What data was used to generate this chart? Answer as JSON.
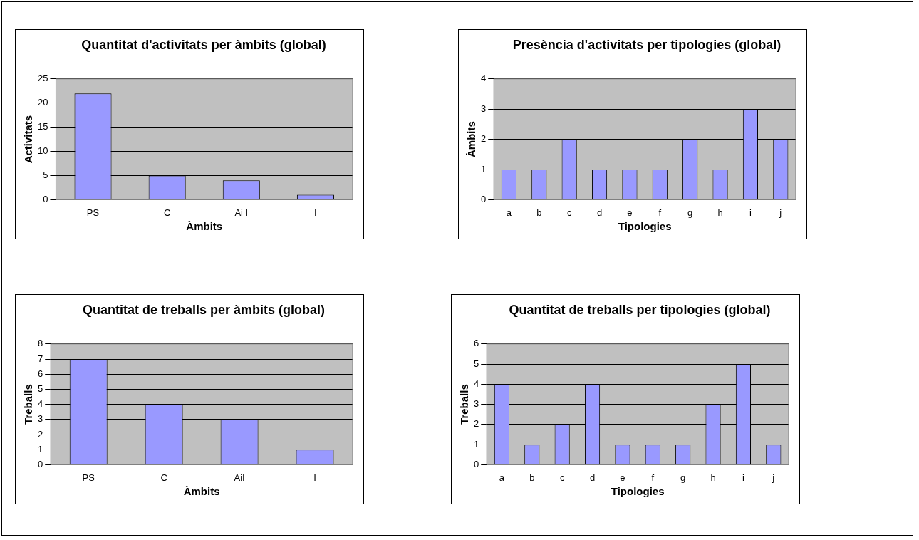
{
  "chart_data": [
    {
      "type": "bar",
      "title": "Quantitat d'activitats per àmbits (global)",
      "xlabel": "Àmbits",
      "ylabel": "Activitats",
      "categories": [
        "PS",
        "C",
        "Ai I",
        "I"
      ],
      "values": [
        22,
        5,
        4,
        1
      ],
      "color": "#9999ff",
      "ylim": [
        0,
        25
      ],
      "yticks": [
        0,
        5,
        10,
        15,
        20,
        25
      ],
      "grid": "y",
      "legend": false
    },
    {
      "type": "bar",
      "title": "Presència d'activitats per tipologies (global)",
      "xlabel": "Tipologies",
      "ylabel": "Àmbits",
      "categories": [
        "a",
        "b",
        "c",
        "d",
        "e",
        "f",
        "g",
        "h",
        "i",
        "j"
      ],
      "values": [
        1,
        1,
        2,
        1,
        1,
        1,
        2,
        1,
        3,
        2
      ],
      "color": "#9999ff",
      "ylim": [
        0,
        4
      ],
      "yticks": [
        0,
        1,
        2,
        3,
        4
      ],
      "grid": "y",
      "legend": false
    },
    {
      "type": "bar",
      "title": "Quantitat de treballs per àmbits (global)",
      "xlabel": "Àmbits",
      "ylabel": "Treballs",
      "categories": [
        "PS",
        "C",
        "AiI",
        "I"
      ],
      "values": [
        7,
        4,
        3,
        1
      ],
      "color": "#9999ff",
      "ylim": [
        0,
        8
      ],
      "yticks": [
        0,
        1,
        2,
        3,
        4,
        5,
        6,
        7,
        8
      ],
      "grid": "y",
      "legend": false
    },
    {
      "type": "bar",
      "title": "Quantitat de treballs per tipologies (global)",
      "xlabel": "Tipologies",
      "ylabel": "Treballs",
      "categories": [
        "a",
        "b",
        "c",
        "d",
        "e",
        "f",
        "g",
        "h",
        "i",
        "j"
      ],
      "values": [
        4,
        1,
        2,
        4,
        1,
        1,
        1,
        3,
        5,
        1
      ],
      "color": "#9999ff",
      "ylim": [
        0,
        6
      ],
      "yticks": [
        0,
        1,
        2,
        3,
        4,
        5,
        6
      ],
      "grid": "y",
      "legend": false
    }
  ]
}
